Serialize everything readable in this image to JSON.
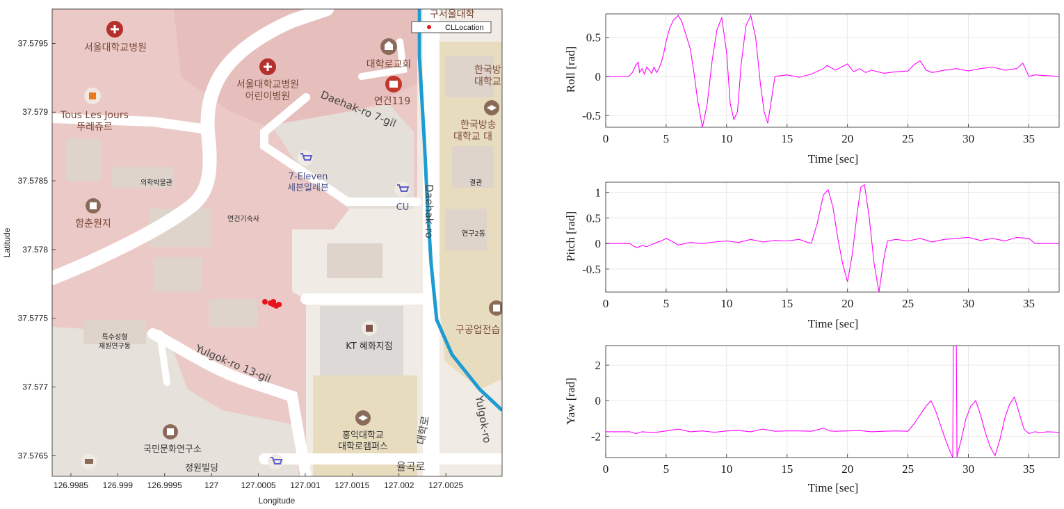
{
  "map": {
    "xlabel": "Longitude",
    "ylabel": "Latitude",
    "xlim": [
      126.9983,
      127.0031
    ],
    "ylim": [
      37.57635,
      37.57975
    ],
    "xticks": [
      "126.9985",
      "126.999",
      "126.9995",
      "127",
      "127.0005",
      "127.001",
      "127.0015",
      "127.002",
      "127.0025"
    ],
    "yticks": [
      "37.5795",
      "37.579",
      "37.5785",
      "37.578",
      "37.5775",
      "37.577",
      "37.5765"
    ],
    "legend": "CLLocation",
    "labels": {
      "hospital": "서울대학교병원",
      "child_hospital_1": "서울대학교병원",
      "child_hospital_2": "어린이병원",
      "church": "대학로교회",
      "yeongeon119": "연건119",
      "touslesjours_1": "Tous Les Jours",
      "touslesjours_2": "뚜레쥬르",
      "daehak7gil": "Daehak-ro 7-gil",
      "seven_1": "7-Eleven",
      "seven_2": "세븐일레븐",
      "cu": "CU",
      "daehakro": "Daehak-ro",
      "medical_hall": "의학박물관",
      "hamchun": "함춘원지",
      "dorm": "연건기숙사",
      "special_1": "특수성형",
      "special_2": "재원연구동",
      "kt": "KT 혜화지점",
      "yulgok13": "Yulgok-ro 13-gil",
      "hongik_1": "홍익대학교",
      "hongik_2": "대학로캠퍼스",
      "gukmin": "국민문화연구소",
      "jungwon": "정원빌딩",
      "hanguk_1": "한국방",
      "hanguk_2": "대학교",
      "broadcast_1": "한국방송",
      "broadcast_2": "대학교 대",
      "gyeolgwan": "결관",
      "yeongu2": "연구2동",
      "gugong": "구공업전습",
      "yulgokro": "Yulgok-ro",
      "daehakro_kr": "대학로",
      "yulgokro_kr": "율곡로",
      "top_cut": "구서울대학"
    },
    "points": [
      [
        127.00057,
        37.57762
      ],
      [
        127.00063,
        37.57761
      ],
      [
        127.00066,
        37.5776
      ],
      [
        127.00069,
        37.57759
      ],
      [
        127.00072,
        37.5776
      ],
      [
        127.00066,
        37.57762
      ]
    ],
    "colors": {
      "point": "#e8141c",
      "route": "#1e9bd0"
    }
  },
  "chart_data": [
    {
      "type": "line",
      "title": "",
      "xlabel": "Time [sec]",
      "ylabel": "Roll [rad]",
      "xlim": [
        0,
        37.5
      ],
      "ylim": [
        -0.65,
        0.8
      ],
      "xticks": [
        0,
        5,
        10,
        15,
        20,
        25,
        30,
        35
      ],
      "yticks": [
        -0.5,
        0,
        0.5
      ],
      "ytick_labels": [
        "-0.5",
        "0",
        "0.5"
      ],
      "grid": true,
      "color": "#ff00ff",
      "x": [
        0,
        1.9,
        2.2,
        2.5,
        2.7,
        2.8,
        3.0,
        3.2,
        3.4,
        3.6,
        3.8,
        4.0,
        4.2,
        4.4,
        4.6,
        4.8,
        5.0,
        5.3,
        5.6,
        6.0,
        6.3,
        6.6,
        7.0,
        7.3,
        7.6,
        8.0,
        8.4,
        8.8,
        9.2,
        9.6,
        10.0,
        10.3,
        10.6,
        10.9,
        11.2,
        11.6,
        12.0,
        12.4,
        12.8,
        13.1,
        13.4,
        13.7,
        14.0,
        15,
        16,
        17,
        18,
        18.3,
        19,
        19.5,
        20,
        20.5,
        21,
        21.5,
        22,
        23,
        24,
        25,
        25.5,
        26,
        26.5,
        27,
        28,
        29,
        30,
        31,
        32,
        33,
        34,
        34.5,
        35,
        35.5,
        37.5
      ],
      "values": [
        0,
        0,
        0.05,
        0.15,
        0.18,
        0.05,
        0.1,
        0.03,
        0.12,
        0.08,
        0.04,
        0.12,
        0.05,
        0.1,
        0.18,
        0.3,
        0.45,
        0.62,
        0.72,
        0.78,
        0.7,
        0.55,
        0.35,
        0.05,
        -0.3,
        -0.65,
        -0.35,
        0.2,
        0.6,
        0.75,
        0.3,
        -0.35,
        -0.55,
        -0.45,
        0.15,
        0.65,
        0.78,
        0.5,
        -0.1,
        -0.45,
        -0.6,
        -0.3,
        0,
        0.02,
        -0.01,
        0.03,
        0.1,
        0.14,
        0.08,
        0.12,
        0.16,
        0.06,
        0.1,
        0.05,
        0.08,
        0.04,
        0.06,
        0.07,
        0.15,
        0.2,
        0.08,
        0.05,
        0.08,
        0.1,
        0.07,
        0.1,
        0.12,
        0.08,
        0.1,
        0.17,
        0,
        0.02,
        0.0
      ]
    },
    {
      "type": "line",
      "title": "",
      "xlabel": "Time [sec]",
      "ylabel": "Pitch [rad]",
      "xlim": [
        0,
        37.5
      ],
      "ylim": [
        -0.95,
        1.2
      ],
      "xticks": [
        0,
        5,
        10,
        15,
        20,
        25,
        30,
        35
      ],
      "yticks": [
        -0.5,
        0,
        0.5,
        1
      ],
      "ytick_labels": [
        "-0.5",
        "0",
        "0.5",
        "1"
      ],
      "grid": true,
      "color": "#ff00ff",
      "x": [
        0,
        2,
        2.3,
        2.6,
        3.0,
        3.4,
        3.8,
        4.2,
        4.6,
        5,
        5.5,
        6,
        7,
        8,
        9,
        10,
        11,
        12,
        13,
        14,
        15,
        16,
        17,
        17.5,
        18,
        18.4,
        18.8,
        19.2,
        19.6,
        20,
        20.4,
        20.8,
        21.1,
        21.4,
        21.8,
        22.2,
        22.6,
        23,
        23.3,
        24,
        25,
        26,
        27,
        28,
        29,
        30,
        31,
        32,
        33,
        34,
        35,
        35.5,
        37.5
      ],
      "values": [
        0,
        0,
        -0.05,
        -0.08,
        -0.04,
        -0.06,
        -0.02,
        0.02,
        0.05,
        0.1,
        0.04,
        -0.03,
        0.02,
        0,
        0.03,
        0.05,
        0.02,
        0.08,
        0.03,
        0.06,
        0.05,
        0.08,
        0.0,
        0.4,
        0.95,
        1.05,
        0.7,
        0.1,
        -0.4,
        -0.75,
        -0.2,
        0.6,
        1.1,
        1.15,
        0.5,
        -0.4,
        -0.95,
        -0.3,
        0.05,
        0.08,
        0.05,
        0.1,
        0.03,
        0.08,
        0.1,
        0.12,
        0.06,
        0.1,
        0.05,
        0.12,
        0.1,
        0.0,
        0.0
      ]
    },
    {
      "type": "line",
      "title": "",
      "xlabel": "Time [sec]",
      "ylabel": "Yaw [rad]",
      "xlim": [
        0,
        37.5
      ],
      "ylim": [
        -3.2,
        3.1
      ],
      "xticks": [
        0,
        5,
        10,
        15,
        20,
        25,
        30,
        35
      ],
      "yticks": [
        -2,
        0,
        2
      ],
      "ytick_labels": [
        "-2",
        "0",
        "2"
      ],
      "grid": true,
      "color": "#ff00ff",
      "x": [
        0,
        2,
        2.5,
        3,
        4,
        5,
        6,
        7,
        8,
        9,
        10,
        11,
        12,
        13,
        14,
        15,
        16,
        17,
        18,
        18.5,
        19,
        20,
        21,
        22,
        23,
        24,
        25,
        25.5,
        26,
        26.5,
        26.9,
        27.3,
        27.7,
        28.1,
        28.5,
        28.7,
        28.75,
        28.8,
        29.0,
        29.05,
        29.1,
        29.4,
        29.8,
        30.2,
        30.6,
        31.0,
        31.4,
        31.8,
        32.2,
        32.6,
        33.0,
        33.4,
        33.8,
        34.2,
        34.6,
        35,
        35.5,
        36,
        36.5,
        37.5
      ],
      "values": [
        -1.75,
        -1.75,
        -1.85,
        -1.75,
        -1.8,
        -1.7,
        -1.6,
        -1.75,
        -1.7,
        -1.78,
        -1.7,
        -1.68,
        -1.75,
        -1.6,
        -1.72,
        -1.7,
        -1.7,
        -1.72,
        -1.55,
        -1.7,
        -1.72,
        -1.7,
        -1.68,
        -1.75,
        -1.72,
        -1.7,
        -1.72,
        -1.3,
        -0.8,
        -0.3,
        0.0,
        -0.6,
        -1.4,
        -2.2,
        -2.9,
        -3.2,
        3.1,
        3.1,
        3.1,
        -3.2,
        -3.0,
        -2.2,
        -1.0,
        -0.3,
        0.0,
        -0.8,
        -1.8,
        -2.6,
        -3.1,
        -2.2,
        -1.0,
        -0.2,
        0.2,
        -0.7,
        -1.6,
        -1.85,
        -1.75,
        -1.8,
        -1.75,
        -1.78
      ]
    }
  ]
}
